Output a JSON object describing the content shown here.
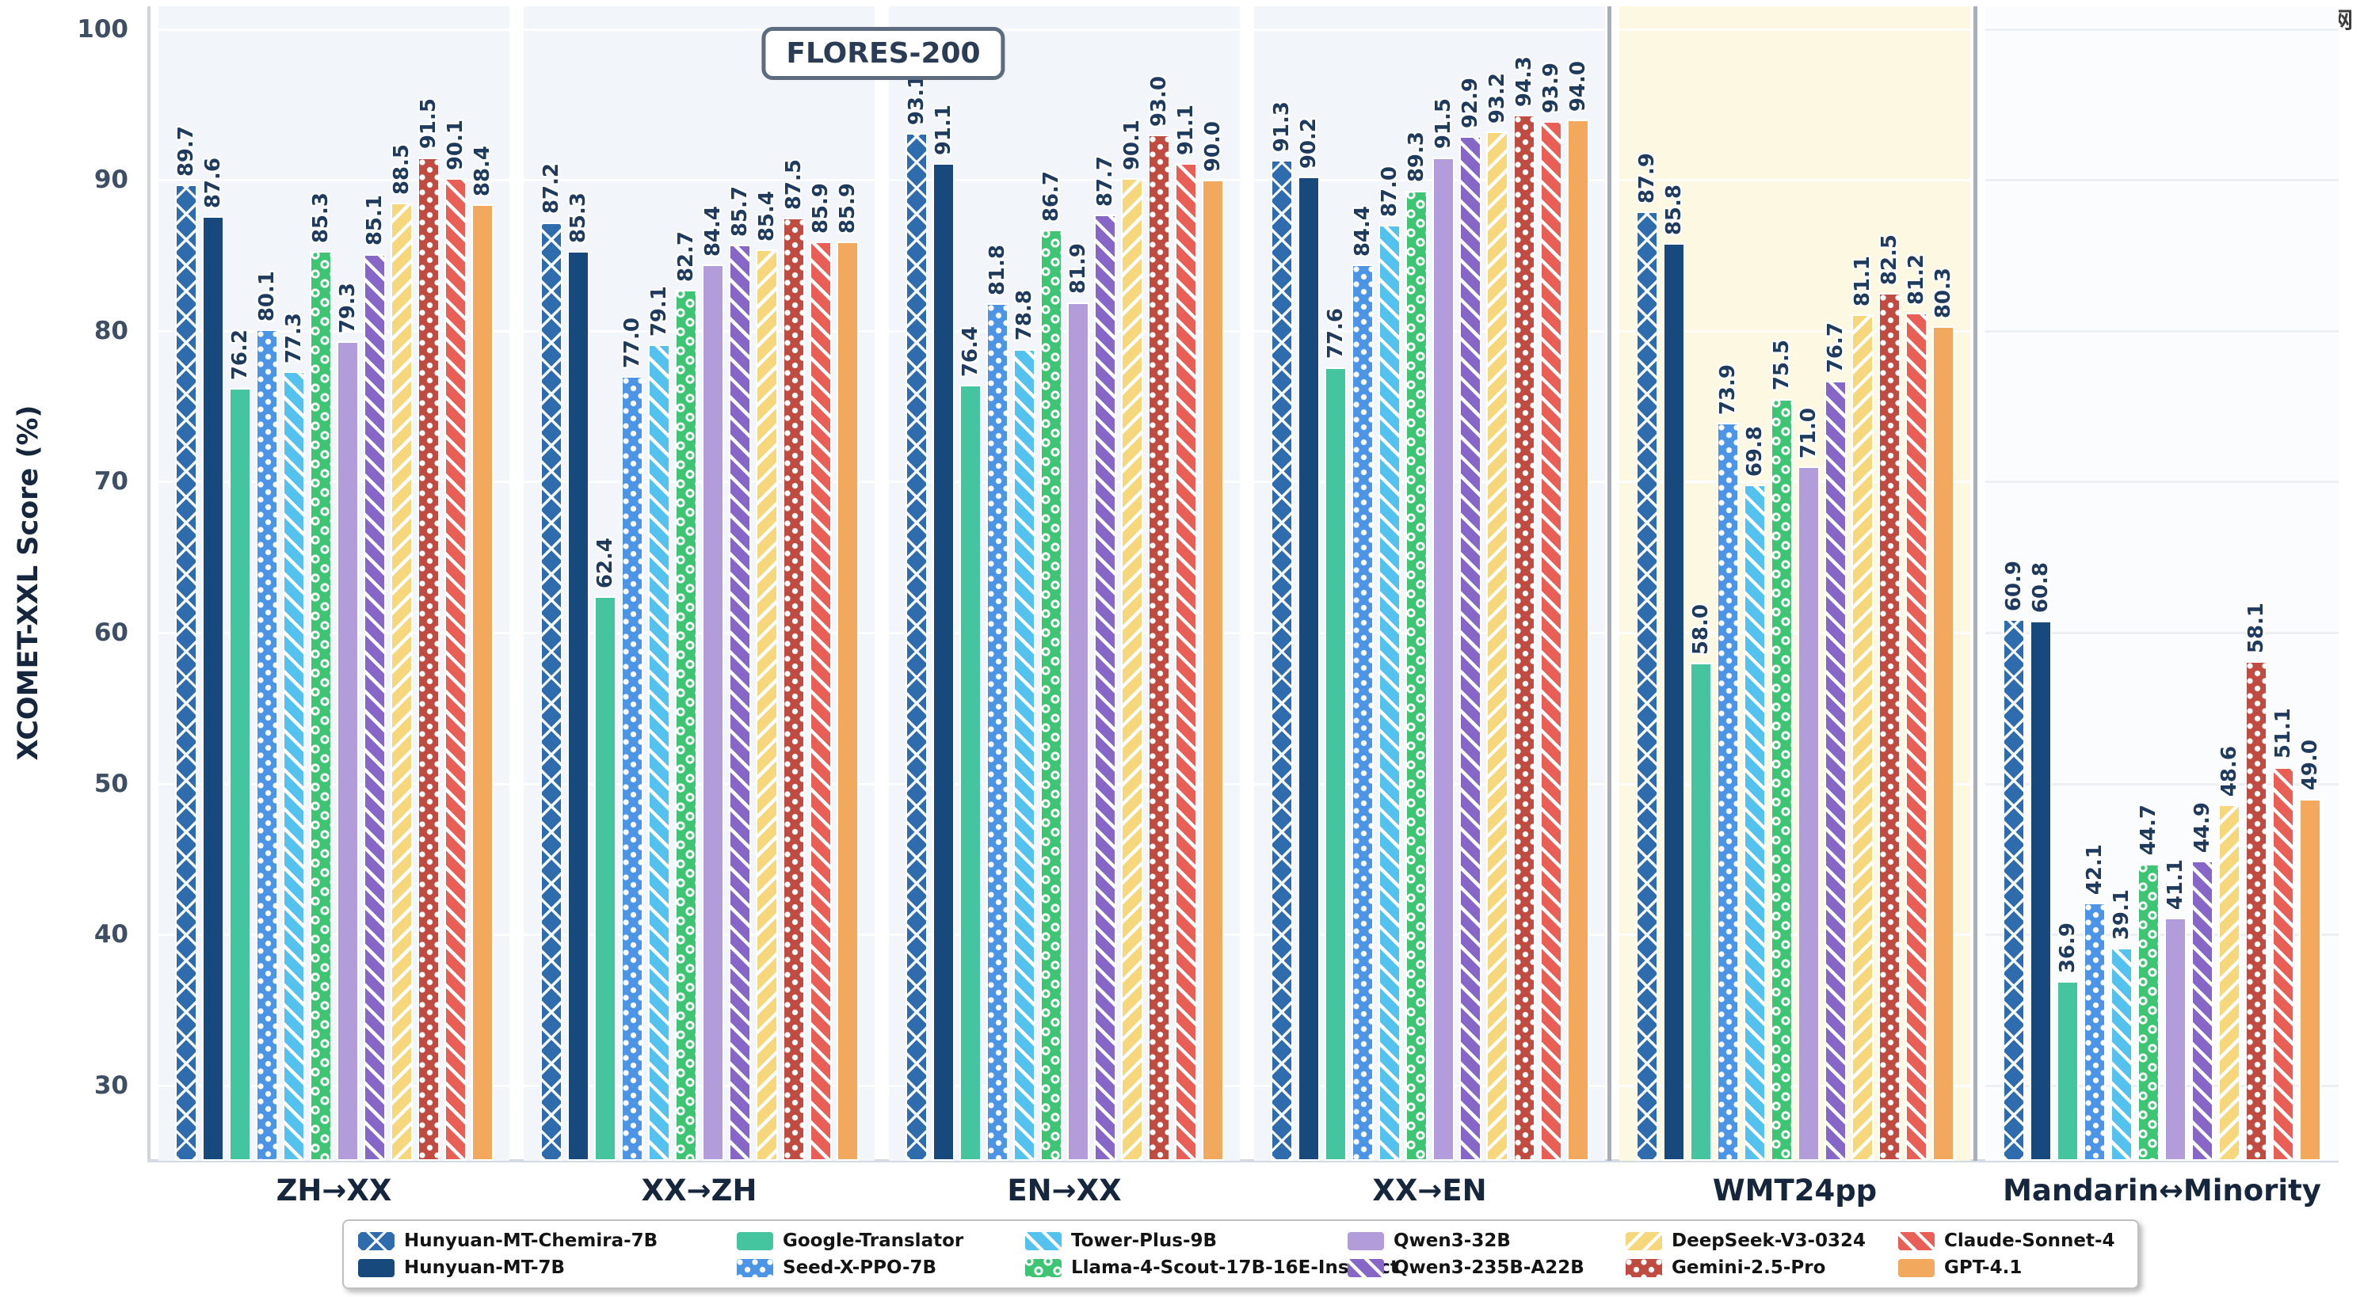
{
  "watermark": {
    "brand": "php",
    "site": "中文网"
  },
  "badge": {
    "label": "FLORES-200"
  },
  "chart_data": {
    "type": "bar",
    "title": "FLORES-200",
    "xlabel": "",
    "ylabel": "XCOMET-XXL Score (%)",
    "ylim": [
      25,
      101.5
    ],
    "yticks": [
      30,
      40,
      50,
      60,
      70,
      80,
      90,
      100
    ],
    "grid": true,
    "legend_position": "bottom",
    "categories": [
      "ZH→XX",
      "XX→ZH",
      "EN→XX",
      "XX→EN",
      "WMT24pp",
      "Mandarin↔Minority"
    ],
    "category_panels": [
      "flores",
      "flores",
      "flores",
      "flores",
      "wmt24pp",
      "minority"
    ],
    "series": [
      {
        "name": "Hunyuan-MT-Chemira-7B",
        "color": "#2e6cad",
        "pattern": "crosshatch",
        "values": [
          89.7,
          87.2,
          93.1,
          91.3,
          87.9,
          60.9
        ]
      },
      {
        "name": "Hunyuan-MT-7B",
        "color": "#17497c",
        "pattern": "solid",
        "values": [
          87.6,
          85.3,
          91.1,
          90.2,
          85.8,
          60.8
        ]
      },
      {
        "name": "Google-Translator",
        "color": "#45c4a0",
        "pattern": "solid",
        "values": [
          76.2,
          62.4,
          76.4,
          77.6,
          58.0,
          36.9
        ]
      },
      {
        "name": "Seed-X-PPO-7B",
        "color": "#4b94e6",
        "pattern": "dots",
        "values": [
          80.1,
          77.0,
          81.8,
          84.4,
          73.9,
          42.1
        ]
      },
      {
        "name": "Tower-Plus-9B",
        "color": "#54c2ee",
        "pattern": "diag-f",
        "values": [
          77.3,
          79.1,
          78.8,
          87.0,
          69.8,
          39.1
        ]
      },
      {
        "name": "Llama-4-Scout-17B-16E-Instruct",
        "color": "#3ec573",
        "pattern": "rings",
        "values": [
          85.3,
          82.7,
          86.7,
          89.3,
          75.5,
          44.7
        ]
      },
      {
        "name": "Qwen3-32B",
        "color": "#b29dda",
        "pattern": "solid",
        "values": [
          79.3,
          84.4,
          81.9,
          91.5,
          71.0,
          41.1
        ]
      },
      {
        "name": "Qwen3-235B-A22B",
        "color": "#8667c8",
        "pattern": "diag-f",
        "values": [
          85.1,
          85.7,
          87.7,
          92.9,
          76.7,
          44.9
        ]
      },
      {
        "name": "DeepSeek-V3-0324",
        "color": "#f6d77c",
        "pattern": "diag-b",
        "values": [
          88.5,
          85.4,
          90.1,
          93.2,
          81.1,
          48.6
        ]
      },
      {
        "name": "Gemini-2.5-Pro",
        "color": "#bf4b41",
        "pattern": "dots",
        "values": [
          91.5,
          87.5,
          93.0,
          94.3,
          82.5,
          58.1
        ]
      },
      {
        "name": "Claude-Sonnet-4",
        "color": "#e95f56",
        "pattern": "diag-f",
        "values": [
          90.1,
          85.9,
          91.1,
          93.9,
          81.2,
          51.1
        ]
      },
      {
        "name": "GPT-4.1",
        "color": "#f2a85d",
        "pattern": "solid",
        "values": [
          88.4,
          85.9,
          90.0,
          94.0,
          80.3,
          49.0
        ]
      }
    ]
  },
  "legend": {
    "columns": [
      [
        0,
        1
      ],
      [
        2,
        3
      ],
      [
        4,
        5
      ],
      [
        6,
        7
      ],
      [
        8,
        9
      ],
      [
        10,
        11
      ]
    ]
  }
}
